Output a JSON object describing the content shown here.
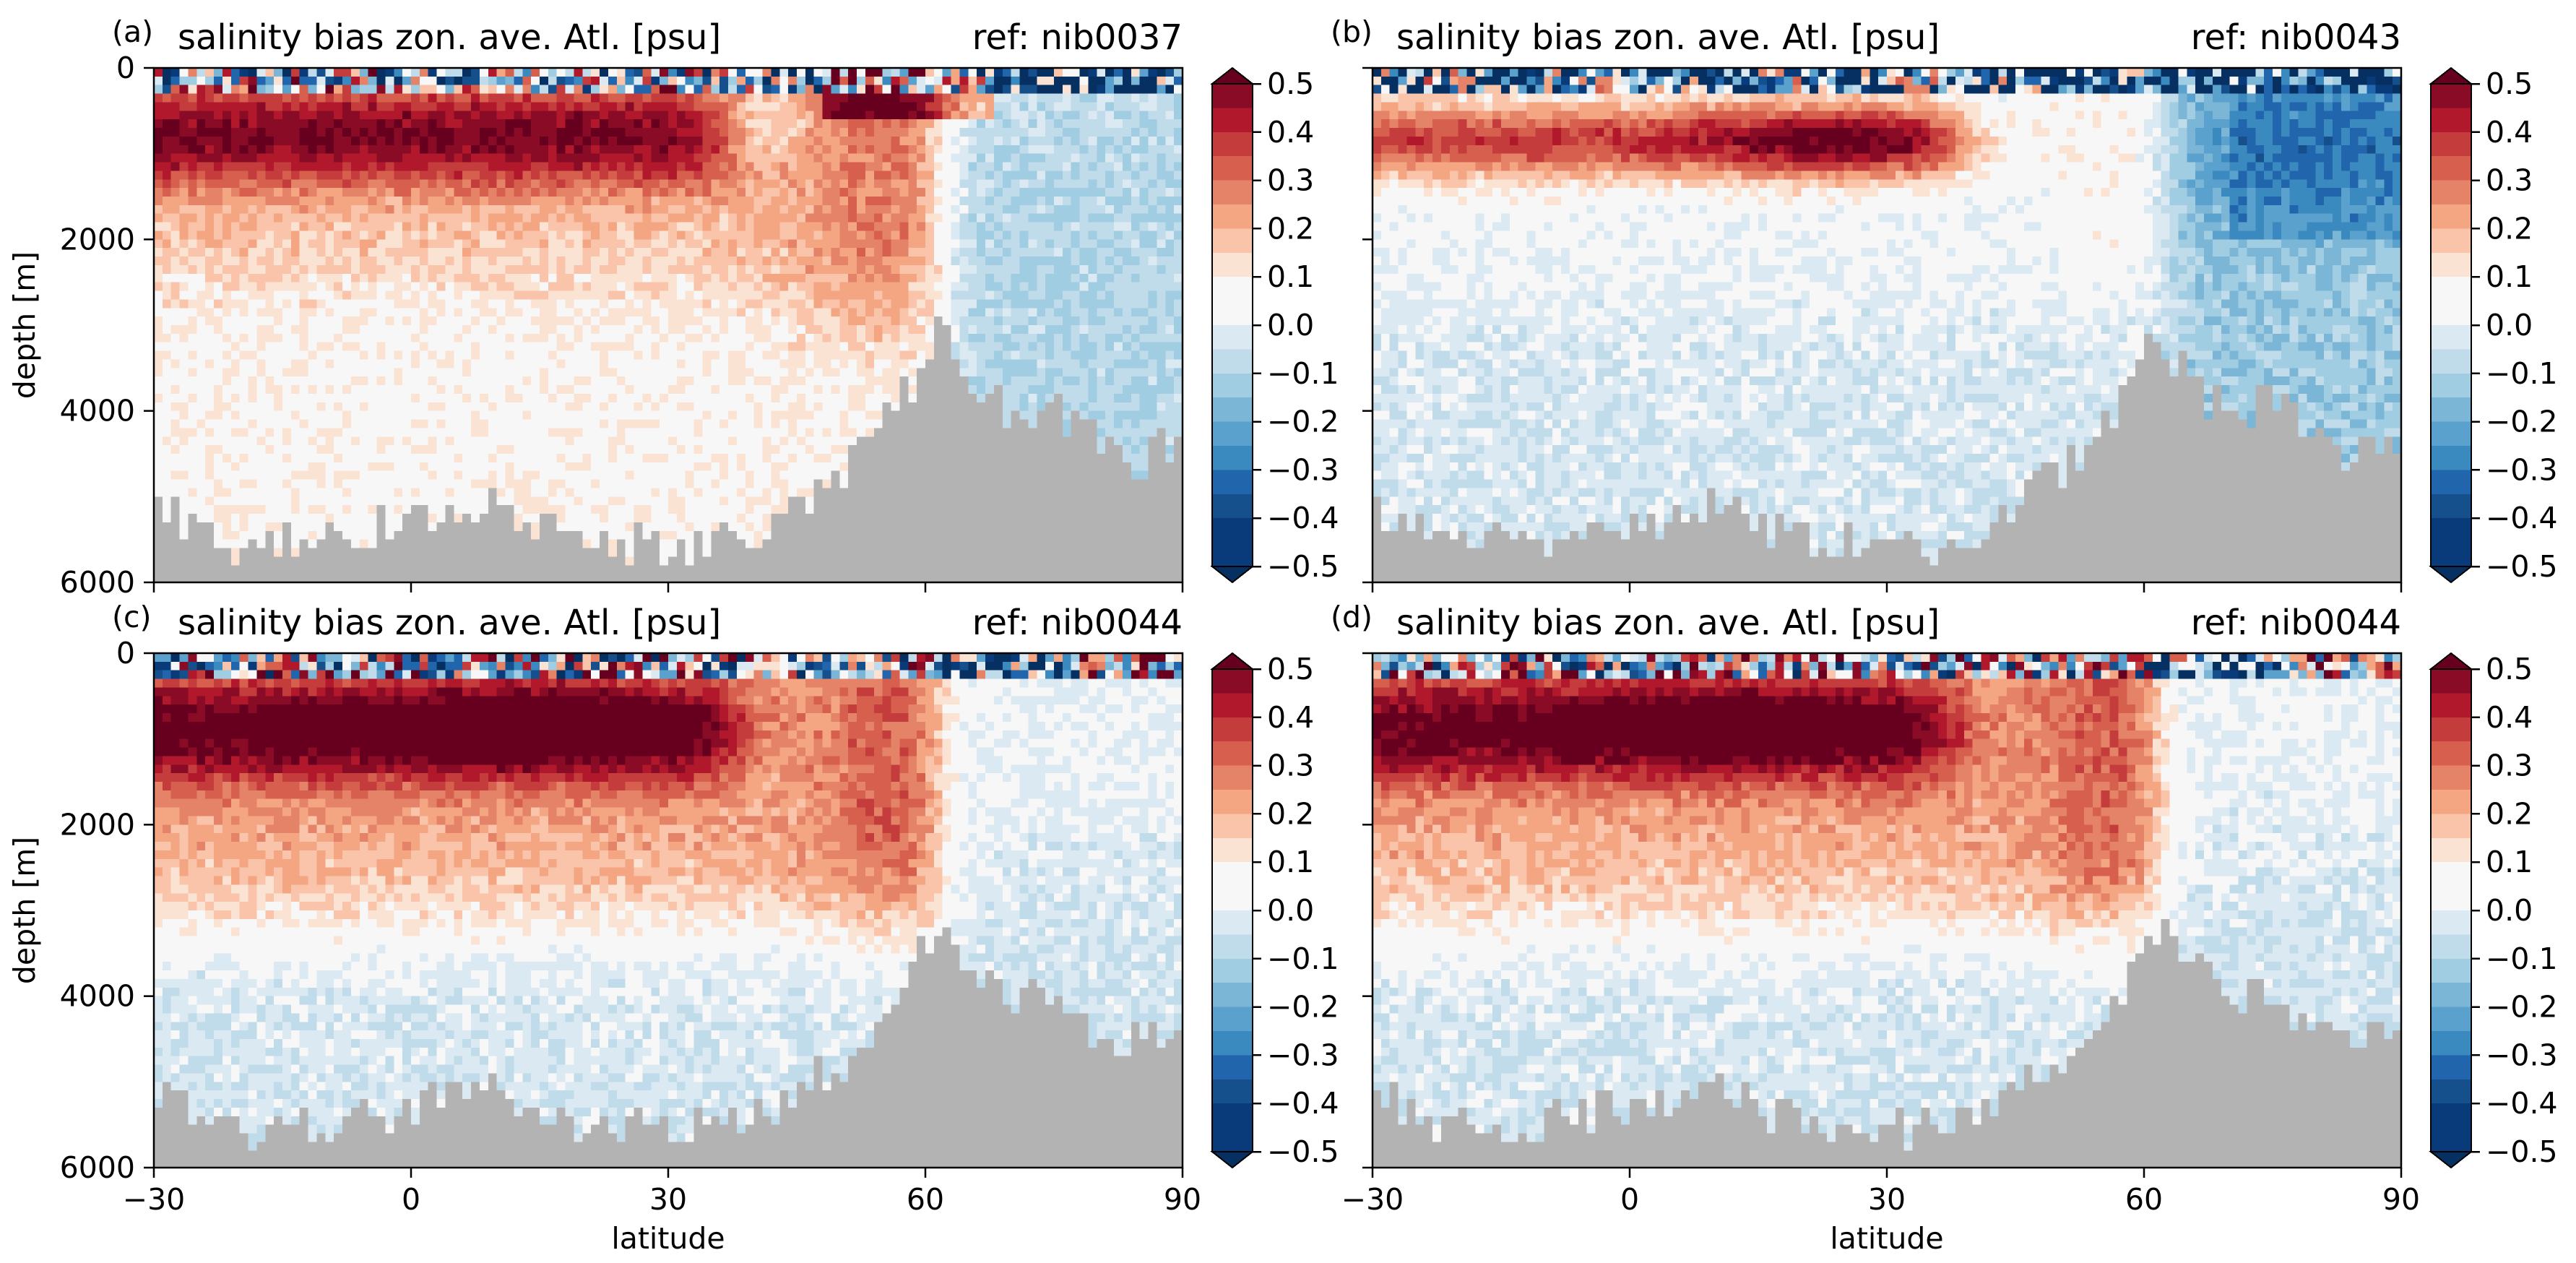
{
  "figure": {
    "colorbar_ticks": [
      "0.5",
      "0.4",
      "0.3",
      "0.2",
      "0.1",
      "0.0",
      "−0.1",
      "−0.2",
      "−0.3",
      "−0.4",
      "−0.5"
    ],
    "colormap": [
      "#67001f",
      "#8a0b25",
      "#b2182b",
      "#c43c3c",
      "#d6604d",
      "#e58368",
      "#f4a582",
      "#f9c4a9",
      "#fbe3d4",
      "#f7f7f7",
      "#f7f7f7",
      "#dbe9f2",
      "#c0dbe9",
      "#a1cde3",
      "#7bb6d6",
      "#5aa1cd",
      "#3a89bf",
      "#2166ac",
      "#16508c",
      "#093a7a",
      "#053061"
    ],
    "land_color": "#b3b3b3"
  },
  "chart_data": [
    {
      "type": "heatmap",
      "panel_label": "(a)",
      "title": "salinity bias zon. ave. Atl. [psu]",
      "ref_label": "ref: nib0037",
      "xlabel": "",
      "ylabel": "depth [m]",
      "x_ticks": [
        "−30",
        "0",
        "30",
        "60",
        "90"
      ],
      "y_ticks": [
        "0",
        "2000",
        "4000",
        "6000"
      ],
      "xlim": [
        -30,
        90
      ],
      "ylim": [
        6000,
        0
      ],
      "color_range": [
        -0.5,
        0.5
      ],
      "pattern": "a",
      "deep_bias": 0.05,
      "seafloor_depth": {
        "lat": [
          -30,
          -25,
          -20,
          -10,
          0,
          10,
          20,
          30,
          40,
          45,
          50,
          55,
          58,
          60,
          62,
          65,
          70,
          75,
          80,
          85,
          90
        ],
        "depth": [
          5200,
          5500,
          5700,
          5600,
          5400,
          5200,
          5600,
          5700,
          5600,
          5200,
          4900,
          4300,
          3900,
          3500,
          3200,
          3700,
          4200,
          4000,
          4500,
          4700,
          4400
        ]
      }
    },
    {
      "type": "heatmap",
      "panel_label": "(b)",
      "title": "salinity bias zon. ave. Atl. [psu]",
      "ref_label": "ref: nib0043",
      "xlabel": "",
      "ylabel": "",
      "x_ticks": [
        "−30",
        "0",
        "30",
        "60",
        "90"
      ],
      "y_ticks": [],
      "xlim": [
        -30,
        90
      ],
      "ylim": [
        6000,
        0
      ],
      "color_range": [
        -0.5,
        0.5
      ],
      "pattern": "b",
      "deep_bias": -0.05,
      "seafloor_depth": {
        "lat": [
          -30,
          -25,
          -20,
          -10,
          0,
          10,
          20,
          30,
          40,
          45,
          50,
          55,
          58,
          60,
          62,
          65,
          70,
          75,
          80,
          85,
          90
        ],
        "depth": [
          5200,
          5500,
          5700,
          5600,
          5400,
          5200,
          5600,
          5700,
          5600,
          5200,
          4900,
          4300,
          3900,
          3500,
          3200,
          3700,
          4200,
          4000,
          4500,
          4700,
          4400
        ]
      }
    },
    {
      "type": "heatmap",
      "panel_label": "(c)",
      "title": "salinity bias zon. ave. Atl. [psu]",
      "ref_label": "ref: nib0044",
      "xlabel": "latitude",
      "ylabel": "depth [m]",
      "x_ticks": [
        "−30",
        "0",
        "30",
        "60",
        "90"
      ],
      "y_ticks": [
        "0",
        "2000",
        "4000",
        "6000"
      ],
      "xlim": [
        -30,
        90
      ],
      "ylim": [
        6000,
        0
      ],
      "color_range": [
        -0.5,
        0.5
      ],
      "pattern": "c",
      "deep_bias": -0.05,
      "seafloor_depth": {
        "lat": [
          -30,
          -25,
          -20,
          -10,
          0,
          10,
          20,
          30,
          40,
          45,
          50,
          55,
          58,
          60,
          62,
          65,
          70,
          75,
          80,
          85,
          90
        ],
        "depth": [
          5200,
          5500,
          5700,
          5600,
          5400,
          5200,
          5600,
          5700,
          5600,
          5200,
          4900,
          4300,
          3900,
          3500,
          3200,
          3700,
          4200,
          4000,
          4500,
          4700,
          4400
        ]
      }
    },
    {
      "type": "heatmap",
      "panel_label": "(d)",
      "title": "salinity bias zon. ave. Atl. [psu]",
      "ref_label": "ref: nib0044",
      "xlabel": "latitude",
      "ylabel": "",
      "x_ticks": [
        "−30",
        "0",
        "30",
        "60",
        "90"
      ],
      "y_ticks": [],
      "xlim": [
        -30,
        90
      ],
      "ylim": [
        6000,
        0
      ],
      "color_range": [
        -0.5,
        0.5
      ],
      "pattern": "d",
      "deep_bias": -0.05,
      "seafloor_depth": {
        "lat": [
          -30,
          -25,
          -20,
          -10,
          0,
          10,
          20,
          30,
          40,
          45,
          50,
          55,
          58,
          60,
          62,
          65,
          70,
          75,
          80,
          85,
          90
        ],
        "depth": [
          5200,
          5500,
          5700,
          5600,
          5400,
          5200,
          5600,
          5700,
          5600,
          5200,
          4900,
          4300,
          3900,
          3500,
          3200,
          3700,
          4200,
          4000,
          4500,
          4700,
          4400
        ]
      }
    }
  ]
}
